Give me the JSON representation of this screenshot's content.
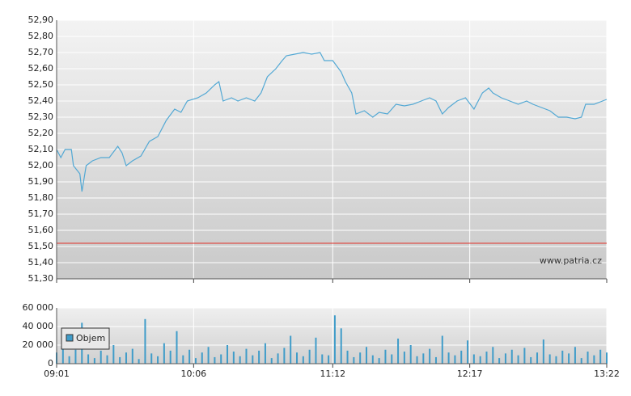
{
  "chart_data": [
    {
      "type": "line",
      "xlim": [
        541,
        802
      ],
      "xticks": [
        541,
        606,
        672,
        737,
        802
      ],
      "ylim": [
        51.3,
        52.9
      ],
      "yticks": [
        {
          "value": 51.3,
          "label": "51,30"
        },
        {
          "value": 51.4,
          "label": "51,40"
        },
        {
          "value": 51.5,
          "label": "51,50"
        },
        {
          "value": 51.6,
          "label": "51,60"
        },
        {
          "value": 51.7,
          "label": "51,70"
        },
        {
          "value": 51.8,
          "label": "51,80"
        },
        {
          "value": 51.9,
          "label": "51,90"
        },
        {
          "value": 52.0,
          "label": "52,00"
        },
        {
          "value": 52.1,
          "label": "52,10"
        },
        {
          "value": 52.2,
          "label": "52,20"
        },
        {
          "value": 52.3,
          "label": "52,30"
        },
        {
          "value": 52.4,
          "label": "52,40"
        },
        {
          "value": 52.5,
          "label": "52,50"
        },
        {
          "value": 52.6,
          "label": "52,60"
        },
        {
          "value": 52.7,
          "label": "52,70"
        },
        {
          "value": 52.8,
          "label": "52,80"
        },
        {
          "value": 52.9,
          "label": "52,90"
        }
      ],
      "grid": true,
      "reference_line": {
        "value": 51.52,
        "color": "#e0302a"
      },
      "annotation": "www.patria.cz",
      "series": [
        {
          "color": "#52a8d4",
          "x": [
            541,
            543,
            545,
            548,
            549,
            552,
            553,
            555,
            558,
            562,
            566,
            570,
            572,
            574,
            577,
            581,
            585,
            589,
            593,
            597,
            600,
            603,
            608,
            612,
            616,
            618,
            620,
            624,
            627,
            631,
            635,
            638,
            641,
            645,
            648,
            650,
            654,
            658,
            662,
            666,
            668,
            672,
            676,
            678,
            681,
            683,
            687,
            691,
            694,
            698,
            702,
            706,
            710,
            714,
            718,
            721,
            724,
            727,
            731,
            735,
            739,
            743,
            746,
            748,
            752,
            756,
            760,
            764,
            767,
            771,
            775,
            779,
            783,
            787,
            790,
            792,
            796,
            800,
            802
          ],
          "values": [
            52.1,
            52.05,
            52.1,
            52.1,
            52.0,
            51.95,
            51.84,
            52.0,
            52.03,
            52.05,
            52.05,
            52.12,
            52.08,
            52.0,
            52.03,
            52.06,
            52.15,
            52.18,
            52.28,
            52.35,
            52.33,
            52.4,
            52.42,
            52.45,
            52.5,
            52.52,
            52.4,
            52.42,
            52.4,
            52.42,
            52.4,
            52.45,
            52.55,
            52.6,
            52.65,
            52.68,
            52.69,
            52.7,
            52.69,
            52.7,
            52.65,
            52.65,
            52.58,
            52.52,
            52.45,
            52.32,
            52.34,
            52.3,
            52.33,
            52.32,
            52.38,
            52.37,
            52.38,
            52.4,
            52.42,
            52.4,
            52.32,
            52.36,
            52.4,
            52.42,
            52.35,
            52.45,
            52.48,
            52.45,
            52.42,
            52.4,
            52.38,
            52.4,
            52.38,
            52.36,
            52.34,
            52.3,
            52.3,
            52.29,
            52.3,
            52.38,
            52.38,
            52.4,
            52.41
          ]
        }
      ]
    },
    {
      "type": "bar",
      "xlim": [
        541,
        802
      ],
      "xticks": [
        {
          "value": 541,
          "label": "09:01"
        },
        {
          "value": 606,
          "label": "10:06"
        },
        {
          "value": 672,
          "label": "11:12"
        },
        {
          "value": 737,
          "label": "12:17"
        },
        {
          "value": 802,
          "label": "13:22"
        }
      ],
      "ylim": [
        0,
        60000
      ],
      "yticks": [
        0,
        {
          "value": 20000,
          "label": "20 000"
        },
        {
          "value": 40000,
          "label": "40 000"
        },
        {
          "value": 60000,
          "label": "60 000"
        }
      ],
      "grid": true,
      "series": [
        {
          "name": "Objem",
          "color": "#3f9cc9",
          "x": [
            541,
            544,
            547,
            550,
            553,
            556,
            559,
            562,
            565,
            568,
            571,
            574,
            577,
            580,
            583,
            586,
            589,
            592,
            595,
            598,
            601,
            604,
            607,
            610,
            613,
            616,
            619,
            622,
            625,
            628,
            631,
            634,
            637,
            640,
            643,
            646,
            649,
            652,
            655,
            658,
            661,
            664,
            667,
            670,
            673,
            676,
            679,
            682,
            685,
            688,
            691,
            694,
            697,
            700,
            703,
            706,
            709,
            712,
            715,
            718,
            721,
            724,
            727,
            730,
            733,
            736,
            739,
            742,
            745,
            748,
            751,
            754,
            757,
            760,
            763,
            766,
            769,
            772,
            775,
            778,
            781,
            784,
            787,
            790,
            793,
            796,
            799,
            802
          ],
          "values": [
            12000,
            18000,
            8000,
            15000,
            44000,
            10000,
            6000,
            14000,
            9000,
            20000,
            7000,
            12000,
            16000,
            5000,
            48000,
            11000,
            8000,
            22000,
            14000,
            35000,
            9000,
            15000,
            6000,
            12000,
            18000,
            7000,
            10000,
            20000,
            13000,
            8000,
            16000,
            9000,
            14000,
            22000,
            6000,
            11000,
            17000,
            30000,
            12000,
            8000,
            15000,
            28000,
            10000,
            9000,
            52000,
            38000,
            14000,
            7000,
            12000,
            18000,
            9000,
            6000,
            15000,
            10000,
            27000,
            13000,
            20000,
            8000,
            11000,
            16000,
            7000,
            30000,
            12000,
            9000,
            14000,
            25000,
            10000,
            8000,
            13000,
            18000,
            6000,
            11000,
            15000,
            9000,
            17000,
            7000,
            12000,
            26000,
            10000,
            8000,
            14000,
            11000,
            18000,
            6000,
            13000,
            9000,
            15000,
            12000
          ]
        }
      ]
    }
  ]
}
